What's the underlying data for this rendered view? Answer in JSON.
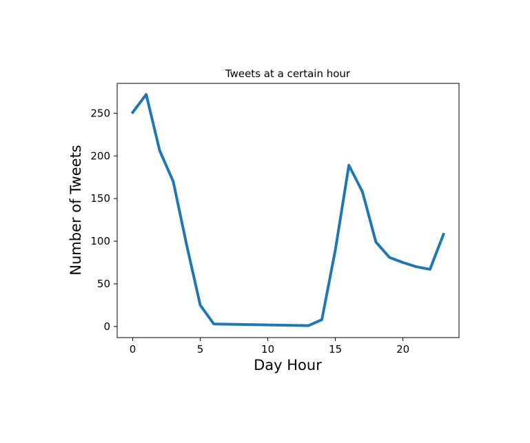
{
  "chart_data": {
    "type": "line",
    "title": "Tweets at a certain hour",
    "xlabel": "Day Hour",
    "ylabel": "Number of Tweets",
    "xlim": [
      -1.15,
      24.15
    ],
    "ylim": [
      -13,
      285
    ],
    "xticks": [
      0,
      5,
      10,
      15,
      20
    ],
    "yticks": [
      0,
      50,
      100,
      150,
      200,
      250
    ],
    "grid": false,
    "series": [
      {
        "color": "#1f77b4",
        "x": [
          0,
          1,
          2,
          3,
          4,
          5,
          6,
          13,
          14,
          15,
          16,
          17,
          18,
          19,
          20,
          21,
          22,
          23
        ],
        "y": [
          251,
          272,
          206,
          170,
          95,
          25,
          3,
          1,
          8,
          90,
          189,
          158,
          99,
          81,
          75,
          70,
          67,
          108
        ]
      }
    ]
  }
}
